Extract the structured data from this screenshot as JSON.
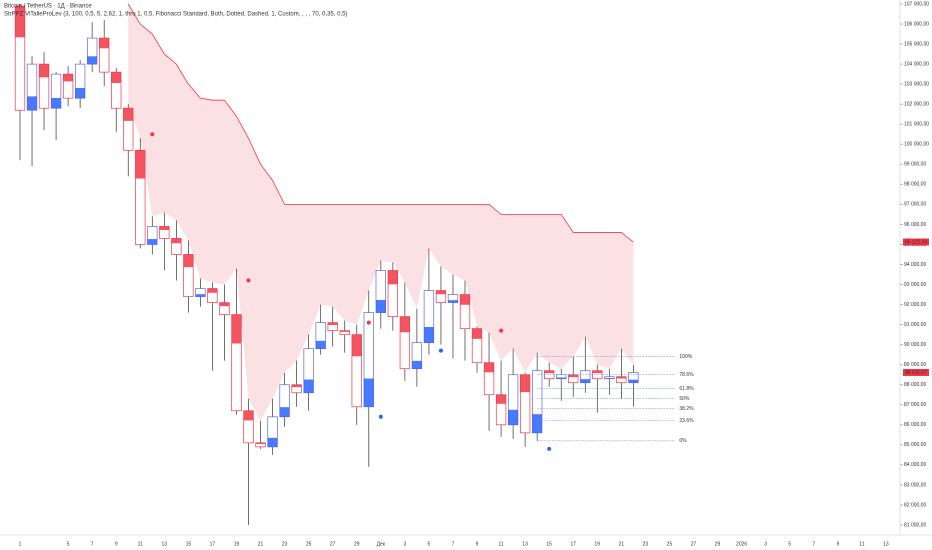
{
  "chart_data": {
    "type": "candlestick",
    "title": "Bitcoin / TetherUS · 1Д · Binance",
    "subtitle": "StrPPZ ViTalleProLev (3, 100, 0,5, 5, 2,62, 1, thru 1, 0,5, Fibonacci Standard, Both, Dotted, Dashed, 1, Custom, , , , 70, 0,35, 0,5)",
    "categories": [
      "1",
      null,
      null,
      null,
      "5",
      null,
      "7",
      null,
      "9",
      null,
      "11",
      null,
      "13",
      null,
      "15",
      null,
      "17",
      null,
      "19",
      null,
      "21",
      null,
      "23",
      null,
      "25",
      null,
      "27",
      null,
      "29",
      null,
      "Дек",
      null,
      "3",
      null,
      "5",
      null,
      "7",
      null,
      "9",
      null,
      "11",
      null,
      "13",
      null,
      "15",
      null,
      "17",
      null,
      "19",
      null,
      "21",
      null,
      "23",
      null,
      "25",
      null,
      "27",
      null,
      "29",
      null,
      "2026",
      null,
      "3",
      null,
      "5",
      null,
      "7",
      null,
      "9",
      null,
      "11",
      null,
      "13",
      null
    ],
    "open": [
      106900,
      101700,
      104000,
      101800,
      103500,
      102300,
      104000,
      105300,
      103600,
      101800,
      99700,
      95000,
      95900,
      95300,
      94500,
      92400,
      92800,
      92100,
      91500,
      86700,
      85100,
      84900,
      86400,
      88000,
      87600,
      89800,
      91100,
      90700,
      90500,
      86900,
      91600,
      93700,
      91400,
      88800,
      90100,
      92700,
      92100,
      92500,
      90800,
      89100,
      87500,
      86000,
      88500,
      85600,
      88700,
      88300,
      88500,
      88100,
      88700,
      88300,
      88400,
      88100,
      null,
      null,
      null,
      null,
      null,
      null,
      null,
      null,
      null,
      null,
      null,
      null,
      null,
      null,
      null,
      null,
      null,
      null,
      null,
      null,
      null,
      null
    ],
    "high": [
      107000,
      104400,
      104600,
      103600,
      103900,
      104200,
      106100,
      106200,
      103800,
      102000,
      100300,
      96400,
      96600,
      96200,
      95200,
      93300,
      93100,
      93000,
      93800,
      87300,
      86200,
      87300,
      88600,
      89200,
      90500,
      92000,
      91900,
      91200,
      91000,
      92700,
      94200,
      94100,
      93100,
      91800,
      94800,
      93900,
      93500,
      93200,
      90900,
      90600,
      89200,
      89800,
      88600,
      89600,
      89100,
      88800,
      89400,
      90400,
      89000,
      88800,
      89800,
      89000,
      null,
      null,
      null,
      null,
      null,
      null,
      null,
      null,
      null,
      null,
      null,
      null,
      null,
      null,
      null,
      null,
      null,
      null,
      null,
      null,
      null,
      null
    ],
    "low": [
      99200,
      98900,
      100700,
      100200,
      101900,
      101800,
      103600,
      102900,
      100600,
      98400,
      94800,
      94500,
      93700,
      93200,
      91600,
      91900,
      88700,
      89200,
      86500,
      81000,
      84800,
      84500,
      85900,
      86900,
      86700,
      89500,
      89900,
      89600,
      86000,
      83900,
      90800,
      90700,
      88200,
      87900,
      89500,
      90000,
      89300,
      89200,
      88600,
      85700,
      85400,
      85300,
      84900,
      85200,
      87900,
      87200,
      87400,
      87600,
      86600,
      87500,
      87300,
      86900,
      null,
      null,
      null,
      null,
      null,
      null,
      null,
      null,
      null,
      null,
      null,
      null,
      null,
      null,
      null,
      null,
      null,
      null,
      null,
      null,
      null,
      null
    ],
    "close": [
      101700,
      104000,
      101800,
      103500,
      102300,
      104000,
      105300,
      103600,
      101800,
      99700,
      95000,
      95900,
      95300,
      94500,
      92400,
      92800,
      92100,
      91500,
      86700,
      85100,
      84900,
      86400,
      88000,
      87600,
      89800,
      91100,
      90700,
      90500,
      86900,
      91600,
      93700,
      91400,
      88800,
      90100,
      92700,
      92100,
      92500,
      90800,
      89100,
      87500,
      86000,
      88500,
      85600,
      88700,
      88300,
      88500,
      88100,
      88700,
      88300,
      88400,
      88100,
      88611.07,
      null,
      null,
      null,
      null,
      null,
      null,
      null,
      null,
      null,
      null,
      null,
      null,
      null,
      null,
      null,
      null,
      null,
      null,
      null,
      null,
      null,
      null
    ],
    "trail": [
      null,
      null,
      null,
      null,
      null,
      null,
      null,
      null,
      null,
      107000,
      106000,
      105500,
      104500,
      104000,
      103000,
      102300,
      102200,
      102200,
      101400,
      100300,
      99000,
      98200,
      97000,
      97000,
      97000,
      97000,
      97000,
      97000,
      97000,
      97000,
      97000,
      97000,
      97000,
      97000,
      97000,
      97000,
      97000,
      97000,
      97000,
      97000,
      96500,
      96500,
      96500,
      96500,
      96500,
      96500,
      95600,
      95600,
      95600,
      95600,
      95600,
      95122.23,
      null,
      null,
      null,
      null,
      null,
      null,
      null,
      null,
      null,
      null,
      null,
      null,
      null,
      null,
      null,
      null,
      null,
      null,
      null,
      null,
      null,
      null
    ],
    "bull_color": "#2962ff",
    "bear_color": "#f23645",
    "band_color": "#f8c9cc",
    "signals": [
      {
        "color": "#f23645",
        "x": [
          11,
          19,
          29,
          40
        ],
        "values": [
          100500,
          93200,
          91100,
          90700
        ]
      },
      {
        "color": "#2962ff",
        "x": [
          30,
          35,
          44
        ],
        "values": [
          86400,
          89700,
          84800
        ]
      }
    ],
    "fib_levels": [
      {
        "value": 89400,
        "label": "100%"
      },
      {
        "value": 88500,
        "label": "78.6%"
      },
      {
        "value": 87800,
        "label": "61.8%"
      },
      {
        "value": 87300,
        "label": "50%"
      },
      {
        "value": 86800,
        "label": "38.2%"
      },
      {
        "value": 86200,
        "label": "23.6%"
      },
      {
        "value": 85200,
        "label": "0%"
      }
    ],
    "price_labels": [
      {
        "value": 95122.23,
        "label": "95 122,23",
        "color": "#f23645"
      },
      {
        "value": 88611.07,
        "label": "88 611,07",
        "color": "#f23645"
      }
    ],
    "ylim": [
      81000,
      107200
    ],
    "yticks": [
      {
        "value": 81000,
        "label": "81 000,00"
      },
      {
        "value": 82000,
        "label": "82 000,00"
      },
      {
        "value": 83000,
        "label": "83 000,00"
      },
      {
        "value": 84000,
        "label": "84 000,00"
      },
      {
        "value": 85000,
        "label": "85 000,00"
      },
      {
        "value": 86000,
        "label": "86 000,00"
      },
      {
        "value": 87000,
        "label": "87 000,00"
      },
      {
        "value": 88000,
        "label": "88 000,00"
      },
      {
        "value": 89000,
        "label": "89 000,00"
      },
      {
        "value": 90000,
        "label": "90 000,00"
      },
      {
        "value": 91000,
        "label": "91 000,00"
      },
      {
        "value": 92000,
        "label": "92 000,00"
      },
      {
        "value": 93000,
        "label": "93 000,00"
      },
      {
        "value": 94000,
        "label": "94 000,00"
      },
      {
        "value": 95000,
        "label": "95 000,00"
      },
      {
        "value": 96000,
        "label": "96 000,00"
      },
      {
        "value": 97000,
        "label": "97 000,00"
      },
      {
        "value": 98000,
        "label": "98 000,00"
      },
      {
        "value": 99000,
        "label": "99 000,00"
      },
      {
        "value": 100000,
        "label": "100 000,00"
      },
      {
        "value": 101000,
        "label": "101 000,00"
      },
      {
        "value": 102000,
        "label": "102 000,00"
      },
      {
        "value": 103000,
        "label": "103 000,00"
      },
      {
        "value": 104000,
        "label": "104 000,00"
      },
      {
        "value": 105000,
        "label": "105 000,00"
      },
      {
        "value": 106000,
        "label": "106 000,00"
      },
      {
        "value": 107000,
        "label": "107 000,00"
      }
    ]
  }
}
